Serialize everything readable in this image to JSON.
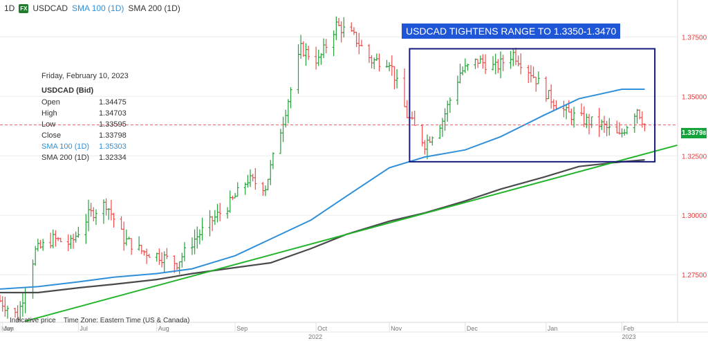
{
  "header": {
    "timeframe": "1D",
    "badge": "FX",
    "symbol": "USDCAD",
    "sma100": "SMA 100 (1D)",
    "sma200": "SMA 200 (1D)"
  },
  "banner": "USDCAD TIGHTENS RANGE TO 1.3350-1.3470",
  "ohlc": {
    "date": "Friday, February 10, 2023",
    "symbol": "USDCAD (Bid)",
    "rows": [
      {
        "label": "Open",
        "value": "1.34475"
      },
      {
        "label": "High",
        "value": "1.34703"
      },
      {
        "label": "Low",
        "value": "1.33595"
      },
      {
        "label": "Close",
        "value": "1.33798"
      },
      {
        "label": "SMA 100 (1D)",
        "value": "1.35303"
      },
      {
        "label": "SMA 200 (1D)",
        "value": "1.32334"
      }
    ]
  },
  "footer": {
    "indicative": "Indicative price",
    "timezone": "Time Zone: Eastern Time (US & Canada)"
  },
  "price_tag": "1.3379",
  "price_tag_small": "8",
  "colors": {
    "up": "#22a037",
    "down": "#ef4b4b",
    "sma100": "#2f8fd8",
    "sma200": "#4a4a4a",
    "trendline": "#21b32a",
    "range_box": "#16197a",
    "banner": "#1f56d8",
    "axis_text": "#e33b3b"
  },
  "chart_data": {
    "type": "candlestick",
    "title": "USDCAD",
    "ylim": [
      1.255,
      1.3905
    ],
    "y_ticks": [
      1.275,
      1.3,
      1.325,
      1.35,
      1.375
    ],
    "y_tick_labels": [
      "1.27500",
      "1.30000",
      "1.32500",
      "1.35000",
      "1.37500"
    ],
    "x_ticks": [
      {
        "date": "2022-05-31",
        "label": "May"
      },
      {
        "date": "2022-06-01",
        "label": "Jun"
      },
      {
        "date": "2022-07-01",
        "label": "Jul"
      },
      {
        "date": "2022-08-01",
        "label": "Aug"
      },
      {
        "date": "2022-09-01",
        "label": "Sep"
      },
      {
        "date": "2022-10-03",
        "label": "Oct"
      },
      {
        "date": "2022-11-01",
        "label": "Nov"
      },
      {
        "date": "2022-12-01",
        "label": "Dec"
      },
      {
        "date": "2023-01-02",
        "label": "Jan"
      },
      {
        "date": "2023-02-01",
        "label": "Feb"
      }
    ],
    "year_labels": [
      {
        "date": "2022-09-30",
        "label": "2022"
      },
      {
        "date": "2023-02-01",
        "label": "2023"
      }
    ],
    "x_range": [
      "2022-05-31",
      "2023-02-23"
    ],
    "last_close_line": 1.33798,
    "series": [
      {
        "name": "USDCAD",
        "kind": "daily_close",
        "points": [
          [
            "2022-05-31",
            1.264
          ],
          [
            "2022-06-07",
            1.2575
          ],
          [
            "2022-06-14",
            1.285
          ],
          [
            "2022-06-21",
            1.29
          ],
          [
            "2022-06-28",
            1.288
          ],
          [
            "2022-07-05",
            1.3
          ],
          [
            "2022-07-12",
            1.305
          ],
          [
            "2022-07-19",
            1.29
          ],
          [
            "2022-07-26",
            1.285
          ],
          [
            "2022-08-02",
            1.283
          ],
          [
            "2022-08-09",
            1.28
          ],
          [
            "2022-08-16",
            1.29
          ],
          [
            "2022-08-23",
            1.298
          ],
          [
            "2022-08-30",
            1.305
          ],
          [
            "2022-09-06",
            1.315
          ],
          [
            "2022-09-13",
            1.312
          ],
          [
            "2022-09-20",
            1.34
          ],
          [
            "2022-09-27",
            1.37
          ],
          [
            "2022-10-04",
            1.365
          ],
          [
            "2022-10-11",
            1.38
          ],
          [
            "2022-10-18",
            1.375
          ],
          [
            "2022-10-25",
            1.365
          ],
          [
            "2022-11-01",
            1.365
          ],
          [
            "2022-11-08",
            1.342
          ],
          [
            "2022-11-15",
            1.33
          ],
          [
            "2022-11-22",
            1.34
          ],
          [
            "2022-11-29",
            1.36
          ],
          [
            "2022-12-06",
            1.365
          ],
          [
            "2022-12-13",
            1.362
          ],
          [
            "2022-12-20",
            1.368
          ],
          [
            "2022-12-27",
            1.36
          ],
          [
            "2023-01-03",
            1.35
          ],
          [
            "2023-01-10",
            1.343
          ],
          [
            "2023-01-17",
            1.34
          ],
          [
            "2023-01-24",
            1.338
          ],
          [
            "2023-01-31",
            1.333
          ],
          [
            "2023-02-07",
            1.345
          ],
          [
            "2023-02-10",
            1.338
          ]
        ]
      },
      {
        "name": "SMA 100 (1D)",
        "points": [
          [
            "2022-05-31",
            1.269
          ],
          [
            "2022-06-15",
            1.27
          ],
          [
            "2022-07-01",
            1.272
          ],
          [
            "2022-07-15",
            1.274
          ],
          [
            "2022-08-01",
            1.2755
          ],
          [
            "2022-08-15",
            1.2775
          ],
          [
            "2022-09-01",
            1.283
          ],
          [
            "2022-09-15",
            1.29
          ],
          [
            "2022-10-01",
            1.298
          ],
          [
            "2022-10-15",
            1.308
          ],
          [
            "2022-11-01",
            1.32
          ],
          [
            "2022-11-15",
            1.3245
          ],
          [
            "2022-12-01",
            1.3275
          ],
          [
            "2022-12-15",
            1.333
          ],
          [
            "2023-01-01",
            1.342
          ],
          [
            "2023-01-15",
            1.349
          ],
          [
            "2023-02-01",
            1.353
          ],
          [
            "2023-02-10",
            1.353
          ]
        ]
      },
      {
        "name": "SMA 200 (1D)",
        "points": [
          [
            "2022-05-31",
            1.2675
          ],
          [
            "2022-06-15",
            1.2675
          ],
          [
            "2022-07-01",
            1.2695
          ],
          [
            "2022-07-15",
            1.271
          ],
          [
            "2022-08-01",
            1.273
          ],
          [
            "2022-08-15",
            1.2755
          ],
          [
            "2022-09-01",
            1.278
          ],
          [
            "2022-09-15",
            1.28
          ],
          [
            "2022-10-01",
            1.286
          ],
          [
            "2022-10-15",
            1.292
          ],
          [
            "2022-11-01",
            1.2975
          ],
          [
            "2022-11-15",
            1.301
          ],
          [
            "2022-12-01",
            1.306
          ],
          [
            "2022-12-15",
            1.311
          ],
          [
            "2023-01-01",
            1.316
          ],
          [
            "2023-01-15",
            1.3205
          ],
          [
            "2023-02-01",
            1.3225
          ],
          [
            "2023-02-10",
            1.3233
          ]
        ]
      }
    ],
    "annotations": [
      {
        "kind": "trendline",
        "from": [
          "2022-06-10",
          1.2555
        ],
        "to": [
          "2023-02-23",
          1.3295
        ]
      },
      {
        "kind": "range_box",
        "from": [
          "2022-11-09",
          1.3225
        ],
        "to": [
          "2023-02-14",
          1.37
        ]
      }
    ]
  }
}
